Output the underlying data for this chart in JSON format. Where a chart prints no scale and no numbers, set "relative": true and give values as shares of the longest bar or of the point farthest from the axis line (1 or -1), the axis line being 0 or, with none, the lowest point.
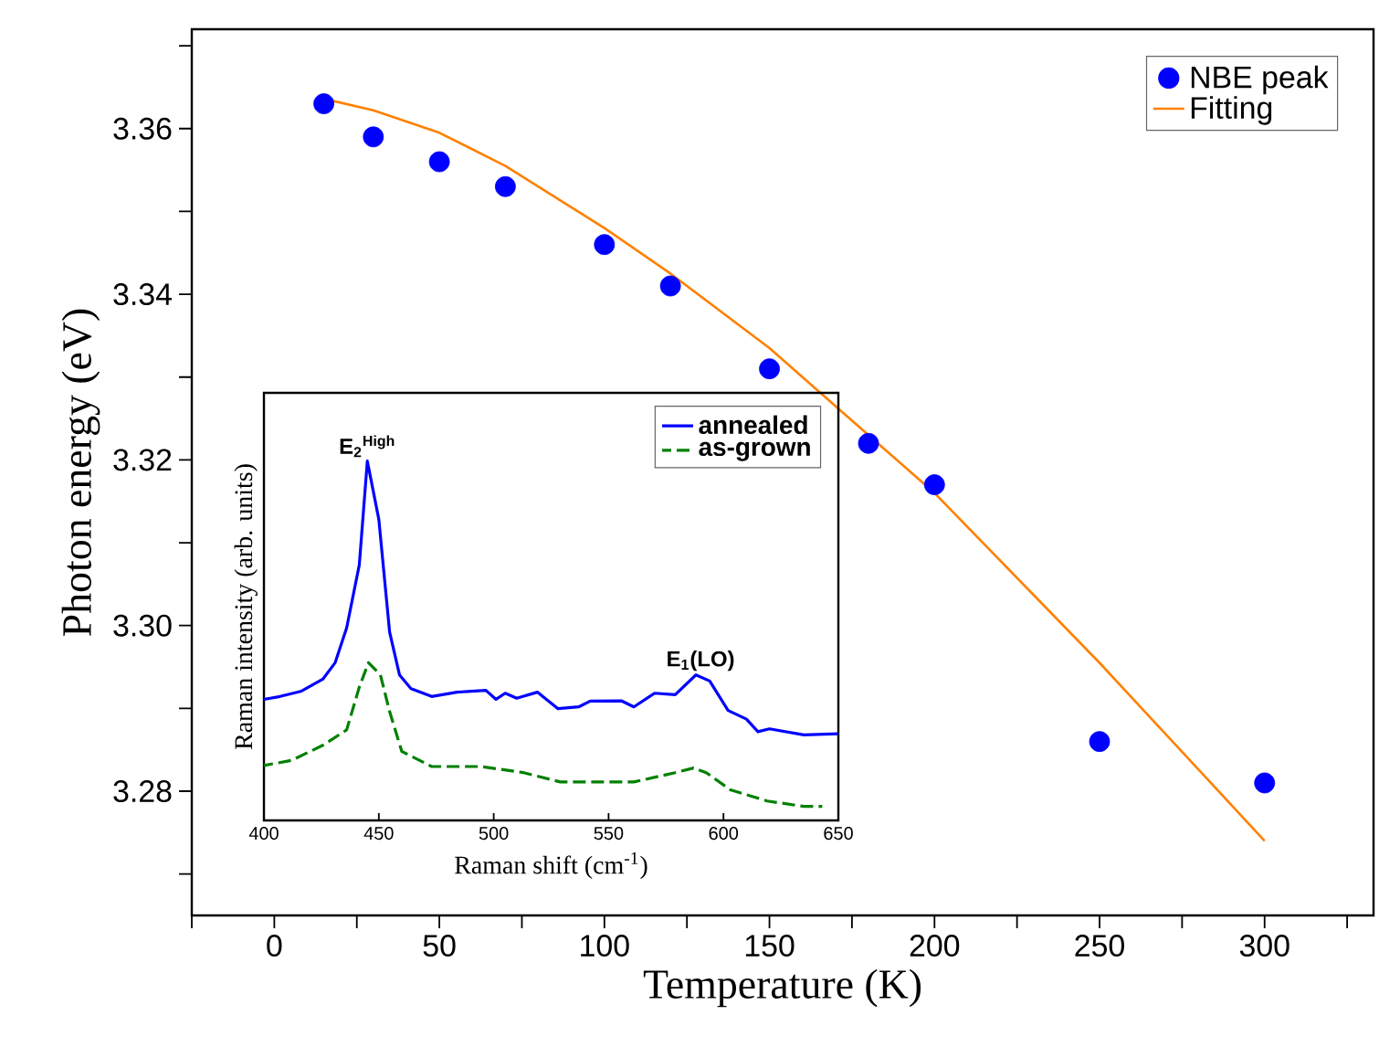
{
  "chart_data": [
    {
      "type": "scatter",
      "xlabel": "Temperature (K)",
      "ylabel": "Photon energy (eV)",
      "xlim": [
        -25,
        333
      ],
      "ylim": [
        3.265,
        3.372
      ],
      "xticks": [
        {
          "value": -25,
          "label": null
        },
        0,
        {
          "value": 25,
          "label": null
        },
        50,
        {
          "value": 75,
          "label": null
        },
        100,
        {
          "value": 125,
          "label": null
        },
        150,
        {
          "value": 175,
          "label": null
        },
        200,
        {
          "value": 225,
          "label": null
        },
        250,
        {
          "value": 275,
          "label": null
        },
        300,
        {
          "value": 325,
          "label": null
        }
      ],
      "yticks": [
        {
          "value": 3.27,
          "label": null
        },
        3.28,
        {
          "value": 3.29,
          "label": null
        },
        {
          "value": 3.3,
          "label": "3.30"
        },
        {
          "value": 3.31,
          "label": null
        },
        3.32,
        {
          "value": 3.33,
          "label": null
        },
        3.34,
        {
          "value": 3.35,
          "label": null
        },
        3.36,
        {
          "value": 3.37,
          "label": null
        }
      ],
      "marker": "circle",
      "legend": "top right",
      "series": [
        {
          "name": "NBE peak",
          "type": "scatter",
          "color": "#0000ff",
          "x": [
            15,
            30,
            50,
            70,
            100,
            120,
            150,
            180,
            200,
            250,
            300
          ],
          "values": [
            3.363,
            3.359,
            3.356,
            3.353,
            3.346,
            3.341,
            3.331,
            3.322,
            3.317,
            3.286,
            3.281
          ]
        },
        {
          "name": "Fitting",
          "type": "line",
          "marker": "none",
          "color": "#ff8000",
          "x": [
            15,
            30,
            50,
            70,
            100,
            120,
            150,
            180,
            200,
            250,
            300
          ],
          "values": [
            3.3636,
            3.3622,
            3.3595,
            3.3555,
            3.348,
            3.3425,
            3.3335,
            3.323,
            3.316,
            3.2955,
            3.274
          ]
        }
      ]
    },
    {
      "type": "line",
      "relative": true,
      "xlabel": "Raman shift (cm$^{-1}$)",
      "ylabel": "Raman intensity (arb. units)",
      "xlim": [
        400,
        650
      ],
      "xticks": [
        400,
        450,
        500,
        550,
        600,
        650
      ],
      "legend": "top right",
      "annotations": [
        {
          "text": "E$_{2}$$^{High}$",
          "x": 445,
          "y": 1.0
        },
        {
          "text": "E$_{1}$(LO)",
          "x": 590,
          "y": 0.405
        }
      ],
      "series": [
        {
          "name": "annealed",
          "color": "#0000ff",
          "line_style": "solid",
          "x": [
            400,
            407,
            416,
            425.6,
            431,
            436,
            441.5,
            445,
            450,
            454.7,
            459,
            464,
            473,
            484,
            496.6,
            501,
            505,
            510,
            519,
            528,
            537,
            542,
            555.5,
            561,
            570,
            579,
            588,
            594,
            602,
            610,
            615,
            620,
            635,
            650
          ],
          "values": [
            0.337,
            0.345,
            0.359,
            0.393,
            0.439,
            0.536,
            0.711,
            1.0,
            0.838,
            0.524,
            0.405,
            0.367,
            0.345,
            0.357,
            0.362,
            0.337,
            0.354,
            0.34,
            0.357,
            0.311,
            0.316,
            0.332,
            0.333,
            0.316,
            0.354,
            0.35,
            0.405,
            0.388,
            0.306,
            0.282,
            0.247,
            0.255,
            0.238,
            0.241
          ]
        },
        {
          "name": "as-grown",
          "color": "#008000",
          "line_style": "dashed",
          "x": [
            400,
            412,
            425.6,
            436,
            441.5,
            445.5,
            450.7,
            454.7,
            460,
            473,
            494.5,
            513,
            529,
            545,
            561,
            579,
            587,
            592.5,
            603,
            619,
            635,
            643
          ],
          "values": [
            0.153,
            0.167,
            0.209,
            0.252,
            0.371,
            0.439,
            0.405,
            0.303,
            0.192,
            0.15,
            0.15,
            0.133,
            0.107,
            0.107,
            0.107,
            0.133,
            0.146,
            0.133,
            0.085,
            0.054,
            0.039,
            0.039
          ]
        }
      ]
    }
  ]
}
